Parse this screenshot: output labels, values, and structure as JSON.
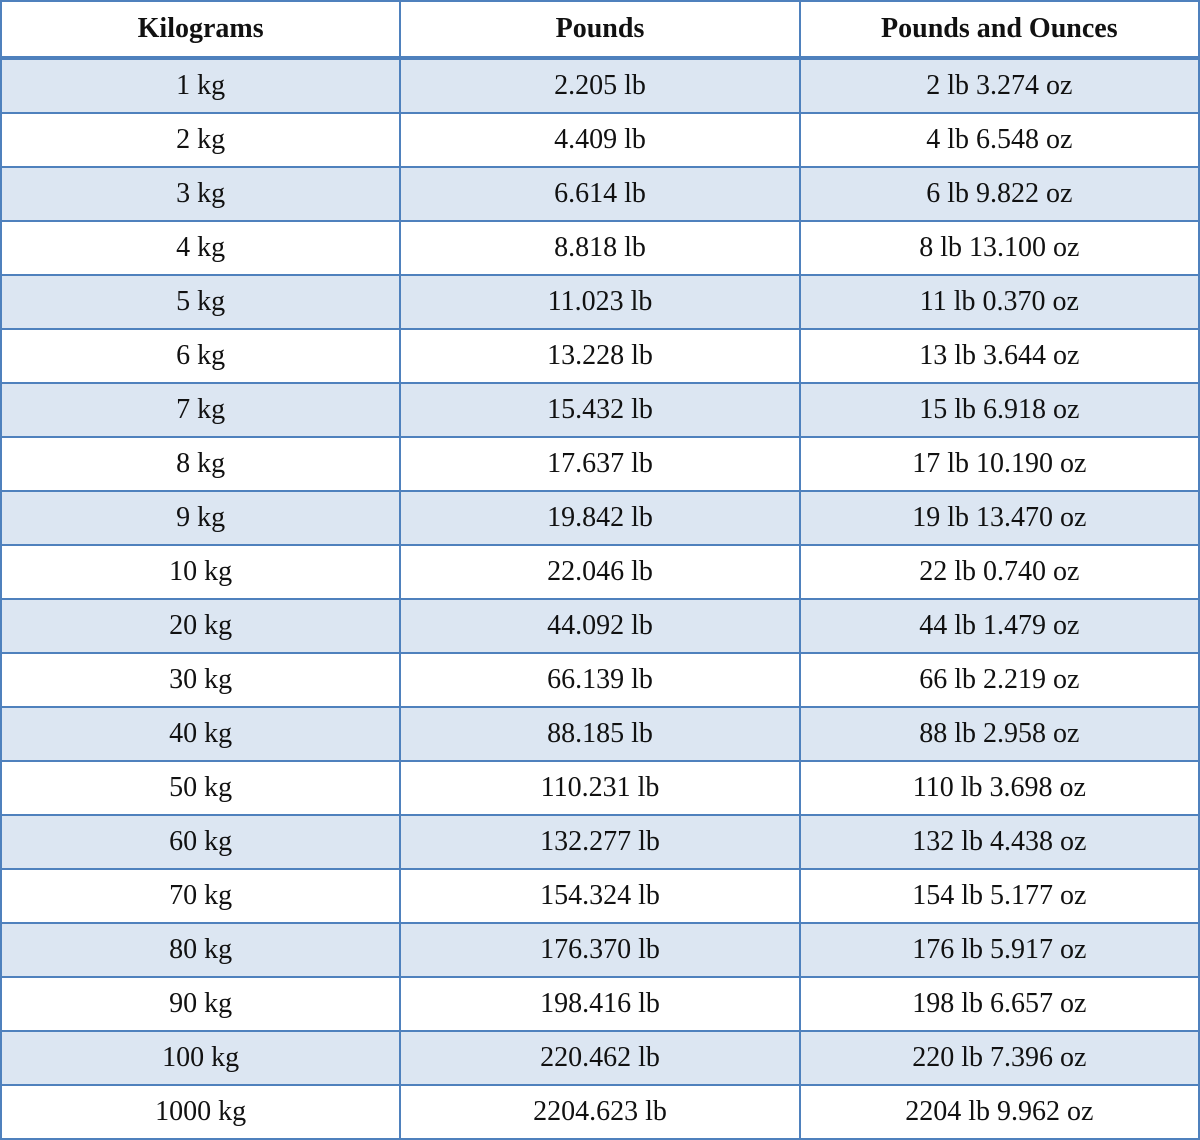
{
  "table": {
    "header": [
      "Kilograms",
      "Pounds",
      "Pounds and Ounces"
    ],
    "rows": [
      [
        "1 kg",
        "2.205 lb",
        "2 lb 3.274 oz"
      ],
      [
        "2 kg",
        "4.409 lb",
        "4 lb 6.548 oz"
      ],
      [
        "3 kg",
        "6.614 lb",
        "6 lb 9.822 oz"
      ],
      [
        "4 kg",
        "8.818 lb",
        "8 lb 13.100 oz"
      ],
      [
        "5 kg",
        "11.023 lb",
        "11 lb 0.370 oz"
      ],
      [
        "6 kg",
        "13.228 lb",
        "13 lb 3.644 oz"
      ],
      [
        "7 kg",
        "15.432 lb",
        "15 lb 6.918 oz"
      ],
      [
        "8 kg",
        "17.637 lb",
        "17 lb 10.190 oz"
      ],
      [
        "9 kg",
        "19.842 lb",
        "19 lb 13.470 oz"
      ],
      [
        "10 kg",
        "22.046 lb",
        "22 lb 0.740 oz"
      ],
      [
        "20 kg",
        "44.092 lb",
        "44 lb 1.479 oz"
      ],
      [
        "30 kg",
        "66.139 lb",
        "66 lb 2.219 oz"
      ],
      [
        "40 kg",
        "88.185 lb",
        "88 lb 2.958 oz"
      ],
      [
        "50 kg",
        "110.231 lb",
        "110 lb 3.698 oz"
      ],
      [
        "60 kg",
        "132.277 lb",
        "132 lb 4.438 oz"
      ],
      [
        "70 kg",
        "154.324 lb",
        "154 lb 5.177 oz"
      ],
      [
        "80 kg",
        "176.370 lb",
        "176 lb 5.917 oz"
      ],
      [
        "90 kg",
        "198.416 lb",
        "198 lb 6.657 oz"
      ],
      [
        "100 kg",
        "220.462 lb",
        "220 lb 7.396 oz"
      ],
      [
        "1000 kg",
        "2204.623 lb",
        "2204 lb 9.962 oz"
      ]
    ]
  }
}
